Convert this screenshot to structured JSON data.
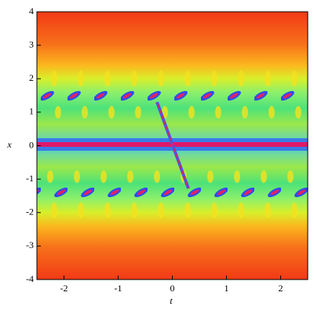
{
  "chart_data": {
    "type": "density",
    "xlabel": "t",
    "ylabel": "x",
    "xlim": [
      -2.5,
      2.5
    ],
    "ylim": [
      -4,
      4
    ],
    "xticks": [
      -2,
      -1,
      0,
      1,
      2
    ],
    "yticks": [
      -4,
      -3,
      -2,
      -1,
      0,
      1,
      2,
      3,
      4
    ]
  }
}
